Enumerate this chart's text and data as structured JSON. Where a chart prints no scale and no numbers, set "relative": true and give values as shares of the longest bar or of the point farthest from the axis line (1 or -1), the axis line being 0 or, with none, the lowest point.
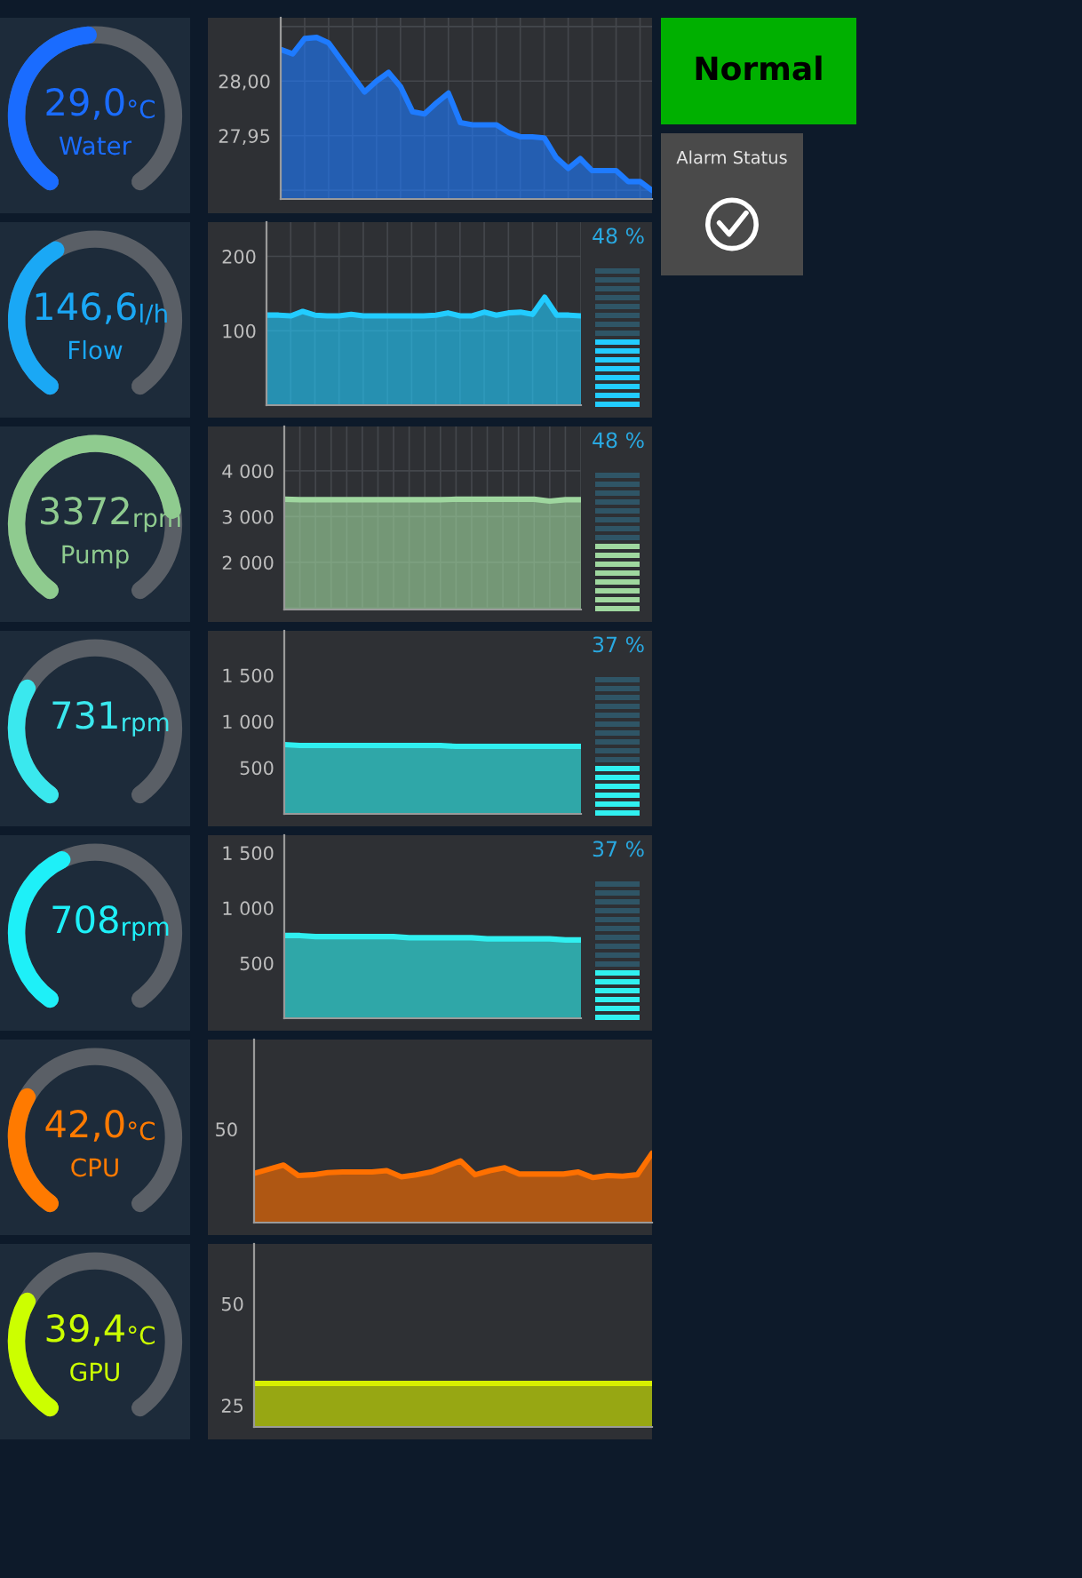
{
  "chart_data": [
    {
      "type": "other",
      "color": "#1a6cff",
      "annotations": [
        "29,0",
        "°C",
        "Water"
      ]
    },
    {
      "type": "area",
      "color": "#1e7bff",
      "grid": true,
      "ylim": [
        27.892,
        28.058
      ],
      "yticks": [
        {
          "value": 28.05,
          "label": null
        },
        {
          "value": 28.0,
          "label": "28,00"
        },
        {
          "value": 27.95,
          "label": "27,95"
        },
        {
          "value": 27.9,
          "label": null
        }
      ],
      "categories": [
        null,
        null,
        null,
        null,
        null,
        null,
        null,
        null,
        null,
        null,
        null,
        null,
        null,
        null,
        null,
        null,
        null,
        null,
        null,
        null,
        null,
        null,
        null,
        null,
        null,
        null,
        null,
        null,
        null,
        null,
        null,
        null
      ],
      "values": [
        28.029,
        28.025,
        28.039,
        28.04,
        28.035,
        28.02,
        28.005,
        27.99,
        28.0,
        28.008,
        27.995,
        27.972,
        27.97,
        27.98,
        27.989,
        27.962,
        27.96,
        27.96,
        27.96,
        27.953,
        27.949,
        27.949,
        27.948,
        27.93,
        27.92,
        27.929,
        27.918,
        27.918,
        27.918,
        27.908,
        27.908,
        27.9
      ]
    },
    {
      "type": "other",
      "color": "#00b000",
      "annotations": [
        "Normal"
      ]
    },
    {
      "type": "other",
      "color": "#4a4a4a",
      "annotations": [
        "Alarm Status"
      ]
    },
    {
      "type": "other",
      "color": "#1aa8f5",
      "annotations": [
        "146,6",
        "l/h",
        "Flow"
      ]
    },
    {
      "type": "area",
      "color": "#22ccff",
      "grid": true,
      "ylim": [
        0,
        246
      ],
      "yticks": [
        200,
        100,
        {
          "value": 0,
          "label": null
        }
      ],
      "annotations": [
        "48 %"
      ],
      "categories": [
        null,
        null,
        null,
        null,
        null,
        null,
        null,
        null,
        null,
        null,
        null,
        null,
        null,
        null,
        null,
        null,
        null,
        null,
        null,
        null,
        null,
        null,
        null,
        null,
        null,
        null,
        null
      ],
      "values": [
        121,
        121,
        120,
        126,
        121,
        120,
        120,
        122,
        120,
        120,
        120,
        120,
        120,
        120,
        121,
        124,
        120,
        120,
        125,
        121,
        124,
        125,
        122,
        145,
        121,
        121,
        120
      ]
    },
    {
      "type": "other",
      "color": "#8fcb8f",
      "annotations": [
        "3372",
        "rpm",
        "Pump"
      ]
    },
    {
      "type": "area",
      "color": "#9fd79f",
      "grid": true,
      "ylim": [
        970,
        4970
      ],
      "yticks": [
        {
          "value": 4000,
          "label": "4 000"
        },
        {
          "value": 3000,
          "label": "3 000"
        },
        {
          "value": 2000,
          "label": "2 000"
        },
        {
          "value": 1000,
          "label": null
        }
      ],
      "annotations": [
        "48 %"
      ],
      "categories": [
        null,
        null,
        null,
        null,
        null,
        null,
        null,
        null,
        null,
        null,
        null,
        null,
        null,
        null,
        null,
        null,
        null,
        null,
        null,
        null
      ],
      "values": [
        3380,
        3370,
        3370,
        3370,
        3370,
        3370,
        3370,
        3370,
        3370,
        3370,
        3370,
        3380,
        3380,
        3380,
        3380,
        3380,
        3380,
        3340,
        3370,
        3370
      ]
    },
    {
      "type": "other",
      "color": "#3ae8ee",
      "annotations": [
        "731",
        "rpm"
      ]
    },
    {
      "type": "area",
      "color": "#30f0f0",
      "ylim": [
        0,
        1980
      ],
      "yticks": [
        {
          "value": 1500,
          "label": "1 500"
        },
        {
          "value": 1000,
          "label": "1 000"
        },
        500,
        {
          "value": 0,
          "label": null
        }
      ],
      "annotations": [
        "37 %"
      ],
      "categories": [
        null,
        null,
        null,
        null,
        null,
        null,
        null,
        null,
        null,
        null,
        null,
        null,
        null,
        null,
        null,
        null,
        null,
        null,
        null,
        null
      ],
      "values": [
        750,
        740,
        740,
        740,
        740,
        740,
        740,
        740,
        740,
        740,
        740,
        730,
        730,
        730,
        730,
        730,
        730,
        730,
        730,
        730
      ]
    },
    {
      "type": "other",
      "color": "#1ef0f8",
      "annotations": [
        "708",
        "rpm"
      ]
    },
    {
      "type": "area",
      "color": "#30f0f0",
      "ylim": [
        0,
        1660
      ],
      "yticks": [
        {
          "value": 1500,
          "label": "1 500"
        },
        {
          "value": 1000,
          "label": "1 000"
        },
        500,
        {
          "value": 0,
          "label": null
        }
      ],
      "annotations": [
        "37 %"
      ],
      "categories": [
        null,
        null,
        null,
        null,
        null,
        null,
        null,
        null,
        null,
        null,
        null,
        null,
        null,
        null,
        null,
        null,
        null,
        null,
        null,
        null
      ],
      "values": [
        750,
        750,
        740,
        740,
        740,
        740,
        740,
        740,
        730,
        730,
        730,
        730,
        730,
        720,
        720,
        720,
        720,
        720,
        710,
        710
      ]
    },
    {
      "type": "other",
      "color": "#ff7a00",
      "annotations": [
        "42,0",
        "°C",
        "CPU"
      ]
    },
    {
      "type": "area",
      "color": "#ff7000",
      "relative": true,
      "annotations": [
        "50"
      ],
      "categories": [
        null,
        null,
        null,
        null,
        null,
        null,
        null,
        null,
        null,
        null,
        null,
        null,
        null,
        null,
        null,
        null,
        null,
        null,
        null,
        null,
        null,
        null,
        null,
        null,
        null,
        null,
        null,
        null
      ],
      "values": [
        0.71,
        0.77,
        0.83,
        0.68,
        0.69,
        0.72,
        0.73,
        0.73,
        0.73,
        0.75,
        0.66,
        0.69,
        0.73,
        0.81,
        0.89,
        0.69,
        0.75,
        0.79,
        0.7,
        0.7,
        0.7,
        0.7,
        0.73,
        0.65,
        0.68,
        0.67,
        0.69,
        1
      ]
    },
    {
      "type": "other",
      "color": "#ccff00",
      "annotations": [
        "39,4",
        "°C",
        "GPU"
      ]
    },
    {
      "type": "area",
      "color": "#d8f000",
      "ylim": [
        19.7,
        64.7
      ],
      "yticks": [
        50,
        25
      ],
      "categories": [
        null,
        null,
        null,
        null,
        null,
        null,
        null,
        null,
        null,
        null,
        null,
        null,
        null,
        null,
        null,
        null,
        null,
        null,
        null,
        null
      ],
      "values": [
        30.4,
        30.4,
        30.4,
        30.4,
        30.4,
        30.4,
        30.4,
        30.4,
        30.4,
        30.4,
        30.4,
        30.4,
        30.4,
        30.4,
        30.4,
        30.4,
        30.4,
        30.4,
        30.4,
        30.4
      ]
    }
  ]
}
